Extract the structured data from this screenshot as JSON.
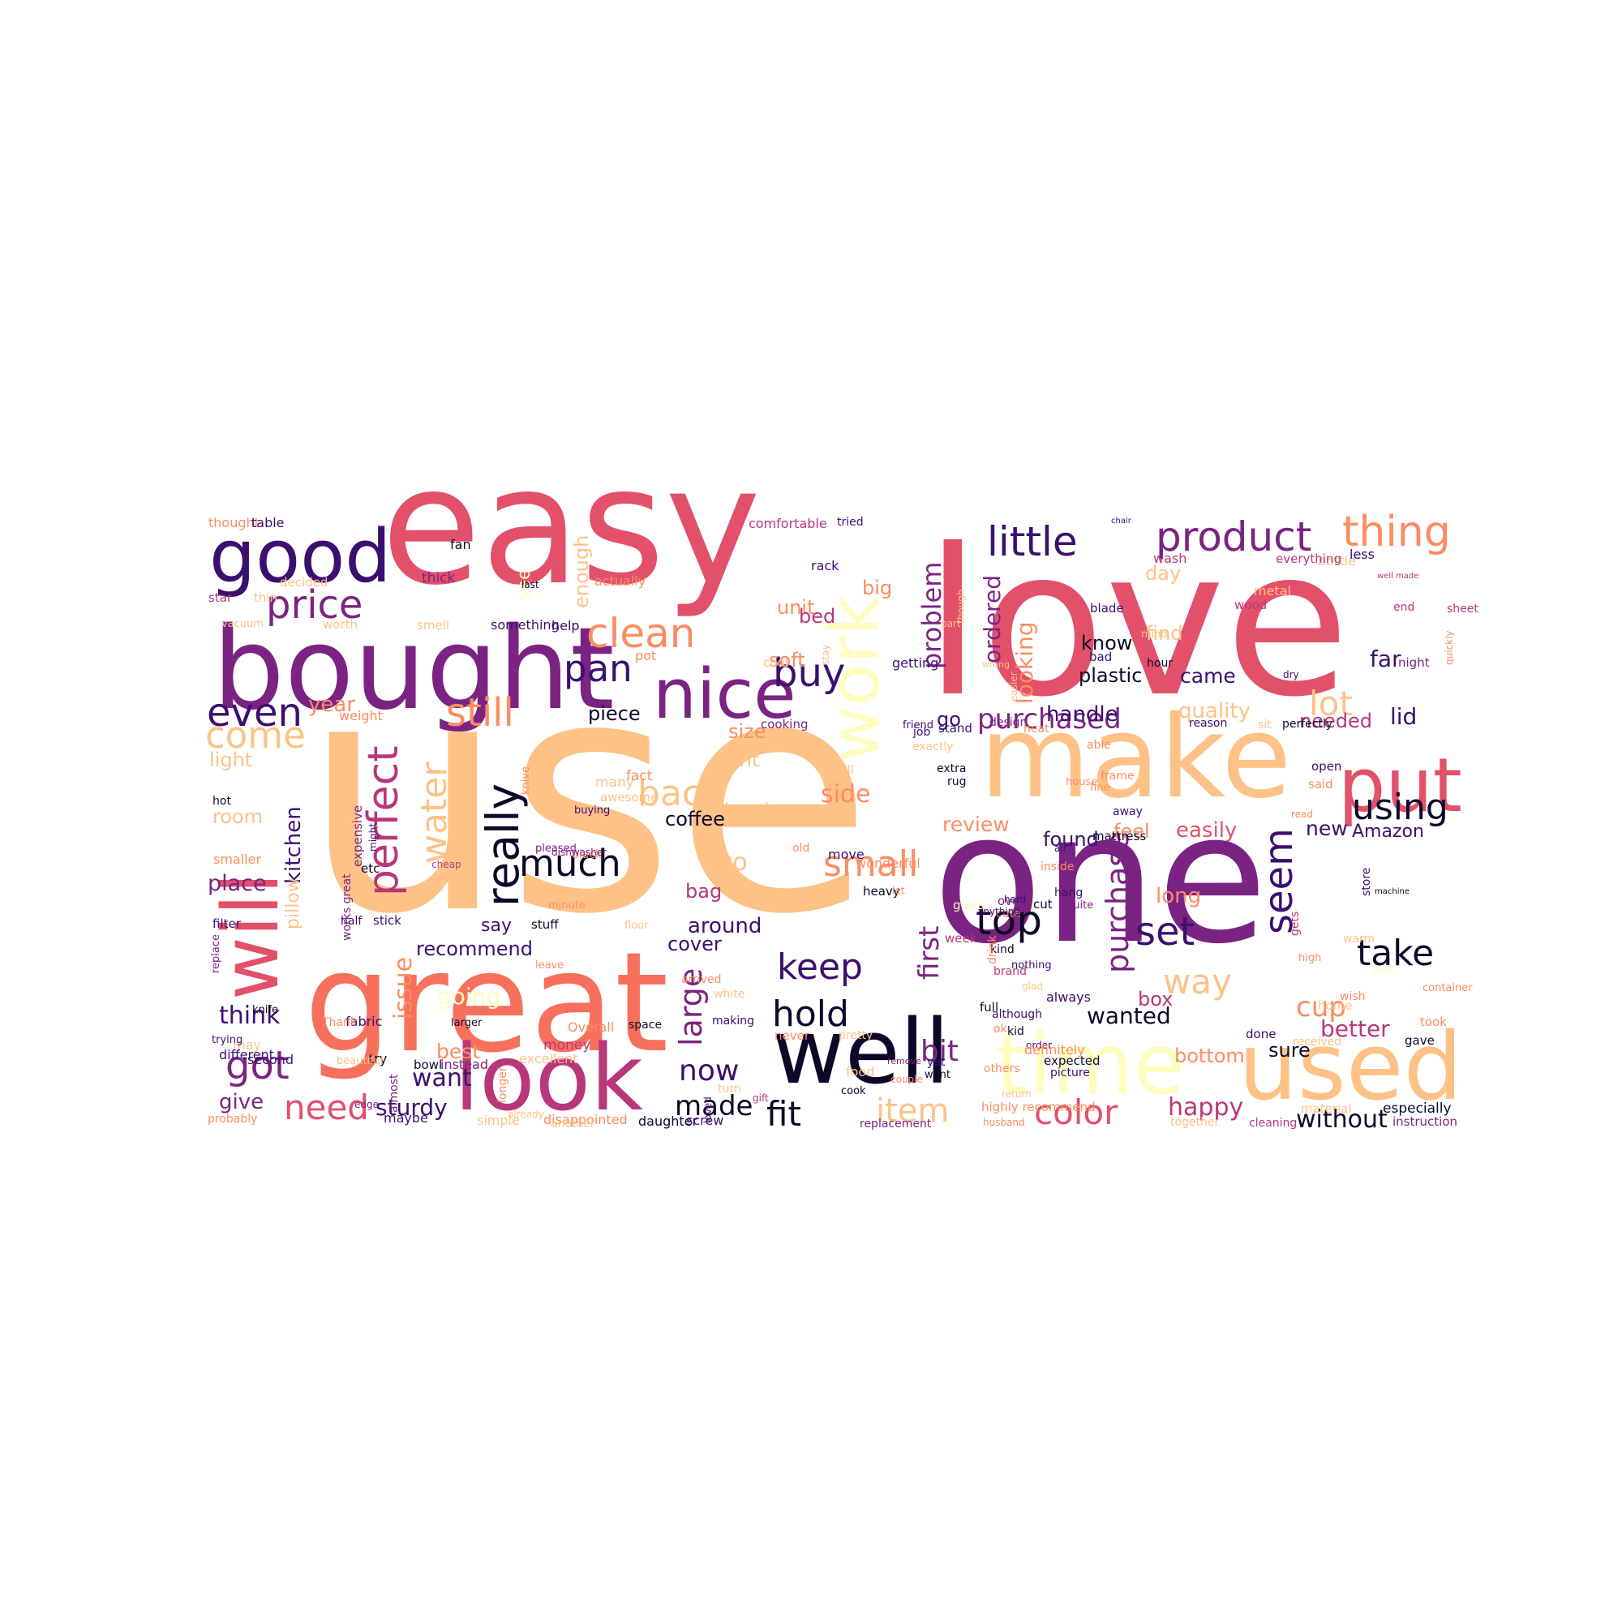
{
  "palette": {
    "dark": "#0d0829",
    "indigo": "#3b0f70",
    "purple": "#7b2382",
    "magenta": "#b73779",
    "rose": "#e2506a",
    "coral": "#f7705c",
    "salmon": "#fb8d62",
    "peach": "#fec287",
    "cream": "#fcfdbf"
  },
  "words": [
    {
      "t": "use",
      "c": "peach"
    },
    {
      "t": "love",
      "c": "rose"
    },
    {
      "t": "easy",
      "c": "rose"
    },
    {
      "t": "one",
      "c": "purple"
    },
    {
      "t": "great",
      "c": "coral"
    },
    {
      "t": "bought",
      "c": "purple"
    },
    {
      "t": "make",
      "c": "peach"
    },
    {
      "t": "well",
      "c": "dark"
    },
    {
      "t": "used",
      "c": "peach"
    },
    {
      "t": "time",
      "c": "cream"
    },
    {
      "t": "look",
      "c": "magenta"
    },
    {
      "t": "good",
      "c": "indigo"
    },
    {
      "t": "will",
      "c": "rose"
    },
    {
      "t": "nice",
      "c": "purple"
    },
    {
      "t": "put",
      "c": "rose"
    },
    {
      "t": "work",
      "c": "cream"
    },
    {
      "t": "product",
      "c": "purple"
    },
    {
      "t": "little",
      "c": "indigo"
    },
    {
      "t": "thing",
      "c": "salmon"
    },
    {
      "t": "price",
      "c": "purple"
    },
    {
      "t": "clean",
      "c": "salmon"
    },
    {
      "t": "pan",
      "c": "indigo"
    },
    {
      "t": "still",
      "c": "salmon"
    },
    {
      "t": "even",
      "c": "indigo"
    },
    {
      "t": "come",
      "c": "peach"
    },
    {
      "t": "buy",
      "c": "indigo"
    },
    {
      "t": "really",
      "c": "dark"
    },
    {
      "t": "perfect",
      "c": "magenta"
    },
    {
      "t": "water",
      "c": "peach"
    },
    {
      "t": "back",
      "c": "peach"
    },
    {
      "t": "much",
      "c": "dark"
    },
    {
      "t": "small",
      "c": "salmon"
    },
    {
      "t": "using",
      "c": "dark"
    },
    {
      "t": "top",
      "c": "dark"
    },
    {
      "t": "seem",
      "c": "indigo"
    },
    {
      "t": "set",
      "c": "indigo"
    },
    {
      "t": "take",
      "c": "dark"
    },
    {
      "t": "way",
      "c": "peach"
    },
    {
      "t": "keep",
      "c": "indigo"
    },
    {
      "t": "hold",
      "c": "dark"
    },
    {
      "t": "need",
      "c": "rose"
    },
    {
      "t": "fit",
      "c": "dark"
    },
    {
      "t": "item",
      "c": "peach"
    },
    {
      "t": "color",
      "c": "rose"
    },
    {
      "t": "made",
      "c": "dark"
    },
    {
      "t": "got",
      "c": "purple"
    },
    {
      "t": "lot",
      "c": "peach"
    },
    {
      "t": "purchase",
      "c": "purple"
    },
    {
      "t": "first",
      "c": "purple"
    },
    {
      "t": "problem",
      "c": "purple"
    },
    {
      "t": "purchased",
      "c": "purple"
    },
    {
      "t": "ordered",
      "c": "purple"
    },
    {
      "t": "looking",
      "c": "salmon"
    },
    {
      "t": "now",
      "c": "indigo"
    },
    {
      "t": "bit",
      "c": "purple"
    },
    {
      "t": "large",
      "c": "purple"
    },
    {
      "t": "cup",
      "c": "salmon"
    },
    {
      "t": "wanted",
      "c": "dark"
    },
    {
      "t": "better",
      "c": "magenta"
    },
    {
      "t": "without",
      "c": "dark"
    },
    {
      "t": "happy",
      "c": "magenta"
    },
    {
      "t": "sturdy",
      "c": "indigo"
    },
    {
      "t": "kitchen",
      "c": "indigo"
    },
    {
      "t": "place",
      "c": "purple"
    },
    {
      "t": "think",
      "c": "indigo"
    },
    {
      "t": "want",
      "c": "indigo"
    },
    {
      "t": "give",
      "c": "purple"
    },
    {
      "t": "issue",
      "c": "salmon"
    },
    {
      "t": "recommend",
      "c": "indigo"
    },
    {
      "t": "best",
      "c": "salmon"
    },
    {
      "t": "going",
      "c": "cream"
    },
    {
      "t": "say",
      "c": "indigo"
    },
    {
      "t": "around",
      "c": "indigo"
    },
    {
      "t": "bag",
      "c": "magenta"
    },
    {
      "t": "cover",
      "c": "indigo"
    },
    {
      "t": "two",
      "c": "peach"
    },
    {
      "t": "coffee",
      "c": "dark"
    },
    {
      "t": "side",
      "c": "salmon"
    },
    {
      "t": "review",
      "c": "salmon"
    },
    {
      "t": "found",
      "c": "indigo"
    },
    {
      "t": "feel",
      "c": "salmon"
    },
    {
      "t": "easily",
      "c": "rose"
    },
    {
      "t": "new",
      "c": "indigo"
    },
    {
      "t": "Amazon",
      "c": "indigo"
    },
    {
      "t": "handle",
      "c": "indigo"
    },
    {
      "t": "quality",
      "c": "peach"
    },
    {
      "t": "needed",
      "c": "magenta"
    },
    {
      "t": "lid",
      "c": "indigo"
    },
    {
      "t": "came",
      "c": "indigo"
    },
    {
      "t": "far",
      "c": "indigo"
    },
    {
      "t": "plastic",
      "c": "dark"
    },
    {
      "t": "know",
      "c": "dark"
    },
    {
      "t": "day",
      "c": "peach"
    },
    {
      "t": "unit",
      "c": "salmon"
    },
    {
      "t": "bed",
      "c": "magenta"
    },
    {
      "t": "big",
      "c": "salmon"
    },
    {
      "t": "soft",
      "c": "salmon"
    },
    {
      "t": "find",
      "c": "peach"
    },
    {
      "t": "piece",
      "c": "dark"
    },
    {
      "t": "size",
      "c": "salmon"
    },
    {
      "t": "right",
      "c": "peach"
    },
    {
      "t": "hand",
      "c": "peach"
    },
    {
      "t": "year",
      "c": "salmon"
    },
    {
      "t": "light",
      "c": "peach"
    },
    {
      "t": "room",
      "c": "peach"
    },
    {
      "t": "long",
      "c": "salmon"
    },
    {
      "t": "box",
      "c": "magenta"
    },
    {
      "t": "sure",
      "c": "dark"
    },
    {
      "t": "bottom",
      "c": "salmon"
    },
    {
      "t": "go",
      "c": "indigo"
    },
    {
      "t": "see",
      "c": "cream"
    },
    {
      "t": "enough",
      "c": "peach"
    },
    {
      "t": "pillow",
      "c": "peach"
    },
    {
      "t": "thought",
      "c": "salmon"
    },
    {
      "t": "table",
      "c": "indigo"
    },
    {
      "t": "comfortable",
      "c": "magenta"
    },
    {
      "t": "fan",
      "c": "dark"
    },
    {
      "t": "tried",
      "c": "indigo"
    },
    {
      "t": "chair",
      "c": "indigo"
    },
    {
      "t": "decided",
      "c": "peach"
    },
    {
      "t": "thick",
      "c": "purple"
    },
    {
      "t": "last",
      "c": "dark"
    },
    {
      "t": "actually",
      "c": "salmon"
    },
    {
      "t": "rack",
      "c": "indigo"
    },
    {
      "t": "bottle",
      "c": "peach"
    },
    {
      "t": "less",
      "c": "indigo"
    },
    {
      "t": "wash",
      "c": "magenta"
    },
    {
      "t": "everything",
      "c": "magenta"
    },
    {
      "t": "metal",
      "c": "peach"
    },
    {
      "t": "well made",
      "c": "magenta"
    },
    {
      "t": "star",
      "c": "magenta"
    },
    {
      "t": "thin",
      "c": "peach"
    },
    {
      "t": "vacuum",
      "c": "peach"
    },
    {
      "t": "worth",
      "c": "peach"
    },
    {
      "t": "smell",
      "c": "peach"
    },
    {
      "t": "something",
      "c": "indigo"
    },
    {
      "t": "help",
      "c": "indigo"
    },
    {
      "t": "end",
      "c": "magenta"
    },
    {
      "t": "blade",
      "c": "indigo"
    },
    {
      "t": "bad",
      "c": "indigo"
    },
    {
      "t": "wood",
      "c": "magenta"
    },
    {
      "t": "sheet",
      "c": "magenta"
    },
    {
      "t": "pot",
      "c": "salmon"
    },
    {
      "t": "cool",
      "c": "peach"
    },
    {
      "t": "getting",
      "c": "indigo"
    },
    {
      "t": "dry",
      "c": "indigo"
    },
    {
      "t": "hour",
      "c": "dark"
    },
    {
      "t": "night",
      "c": "purple"
    },
    {
      "t": "quickly",
      "c": "salmon"
    },
    {
      "t": "weight",
      "c": "salmon"
    },
    {
      "t": "cooking",
      "c": "purple"
    },
    {
      "t": "design",
      "c": "purple"
    },
    {
      "t": "heat",
      "c": "salmon"
    },
    {
      "t": "reason",
      "c": "indigo"
    },
    {
      "t": "sit",
      "c": "peach"
    },
    {
      "t": "perfectly",
      "c": "dark"
    },
    {
      "t": "job",
      "c": "indigo"
    },
    {
      "t": "exactly",
      "c": "peach"
    },
    {
      "t": "friend",
      "c": "indigo"
    },
    {
      "t": "stand",
      "c": "indigo"
    },
    {
      "t": "extra",
      "c": "dark"
    },
    {
      "t": "open",
      "c": "indigo"
    },
    {
      "t": "fill",
      "c": "peach"
    },
    {
      "t": "rug",
      "c": "dark"
    },
    {
      "t": "frame",
      "c": "salmon"
    },
    {
      "t": "able",
      "c": "salmon"
    },
    {
      "t": "said",
      "c": "salmon"
    },
    {
      "t": "away",
      "c": "indigo"
    },
    {
      "t": "many",
      "c": "peach"
    },
    {
      "t": "fact",
      "c": "salmon"
    },
    {
      "t": "awesome",
      "c": "peach"
    },
    {
      "t": "fine",
      "c": "salmon"
    },
    {
      "t": "hot",
      "c": "dark"
    },
    {
      "t": "house",
      "c": "salmon"
    },
    {
      "t": "buying",
      "c": "indigo"
    },
    {
      "t": "read",
      "c": "salmon"
    },
    {
      "t": "mattress",
      "c": "dark"
    },
    {
      "t": "smaller",
      "c": "salmon"
    },
    {
      "t": "etc",
      "c": "dark"
    },
    {
      "t": "old",
      "c": "salmon"
    },
    {
      "t": "air",
      "c": "indigo"
    },
    {
      "t": "black",
      "c": "salmon"
    },
    {
      "t": "cheap",
      "c": "magenta"
    },
    {
      "t": "move",
      "c": "indigo"
    },
    {
      "t": "wonderful",
      "c": "salmon"
    },
    {
      "t": "heavy",
      "c": "dark"
    },
    {
      "t": "let",
      "c": "salmon"
    },
    {
      "t": "inside",
      "c": "salmon"
    },
    {
      "t": "oven",
      "c": "purple"
    },
    {
      "t": "cut",
      "c": "dark"
    },
    {
      "t": "cute",
      "c": "salmon"
    },
    {
      "t": "quite",
      "c": "purple"
    },
    {
      "t": "hang",
      "c": "indigo"
    },
    {
      "t": "store",
      "c": "indigo"
    },
    {
      "t": "glass",
      "c": "cream"
    },
    {
      "t": "hard",
      "c": "indigo"
    },
    {
      "t": "anything",
      "c": "indigo"
    },
    {
      "t": "machine",
      "c": "dark"
    },
    {
      "t": "filter",
      "c": "indigo"
    },
    {
      "t": "half",
      "c": "indigo"
    },
    {
      "t": "stick",
      "c": "indigo"
    },
    {
      "t": "minute",
      "c": "salmon"
    },
    {
      "t": "week",
      "c": "magenta"
    },
    {
      "t": "kind",
      "c": "dark"
    },
    {
      "t": "gets",
      "c": "magenta"
    },
    {
      "t": "warm",
      "c": "peach"
    },
    {
      "t": "stuff",
      "c": "dark"
    },
    {
      "t": "floor",
      "c": "peach"
    },
    {
      "t": "arrived",
      "c": "salmon"
    },
    {
      "t": "high",
      "c": "salmon"
    },
    {
      "t": "nothing",
      "c": "indigo"
    },
    {
      "t": "drink",
      "c": "salmon"
    },
    {
      "t": "brand",
      "c": "magenta"
    },
    {
      "t": "wall",
      "c": "cream"
    },
    {
      "t": "leave",
      "c": "salmon"
    },
    {
      "t": "wish",
      "c": "salmon"
    },
    {
      "t": "home",
      "c": "peach"
    },
    {
      "t": "although",
      "c": "indigo"
    },
    {
      "t": "ok",
      "c": "salmon"
    },
    {
      "t": "received",
      "c": "peach"
    },
    {
      "t": "knife",
      "c": "dark"
    },
    {
      "t": "fabric",
      "c": "indigo"
    },
    {
      "t": "always",
      "c": "indigo"
    },
    {
      "t": "glad",
      "c": "peach"
    },
    {
      "t": "may",
      "c": "peach"
    },
    {
      "t": "try",
      "c": "dark"
    },
    {
      "t": "money",
      "c": "magenta"
    },
    {
      "t": "space",
      "c": "dark"
    },
    {
      "t": "making",
      "c": "indigo"
    },
    {
      "t": "full",
      "c": "dark"
    },
    {
      "t": "took",
      "c": "salmon"
    },
    {
      "t": "container",
      "c": "salmon"
    },
    {
      "t": "trying",
      "c": "indigo"
    },
    {
      "t": "different",
      "c": "indigo"
    },
    {
      "t": "Thank",
      "c": "salmon"
    },
    {
      "t": "larger",
      "c": "dark"
    },
    {
      "t": "Overall",
      "c": "salmon"
    },
    {
      "t": "never",
      "c": "salmon"
    },
    {
      "t": "pretty",
      "c": "peach"
    },
    {
      "t": "kid",
      "c": "dark"
    },
    {
      "t": "order",
      "c": "indigo"
    },
    {
      "t": "done",
      "c": "indigo"
    },
    {
      "t": "gave",
      "c": "dark"
    },
    {
      "t": "definitely",
      "c": "salmon"
    },
    {
      "t": "expected",
      "c": "dark"
    },
    {
      "t": "second",
      "c": "indigo"
    },
    {
      "t": "beautiful",
      "c": "peach"
    },
    {
      "t": "bowl",
      "c": "dark"
    },
    {
      "t": "instead",
      "c": "purple"
    },
    {
      "t": "excellent",
      "c": "peach"
    },
    {
      "t": "food",
      "c": "peach"
    },
    {
      "t": "remove",
      "c": "purple"
    },
    {
      "t": "went",
      "c": "dark"
    },
    {
      "t": "others",
      "c": "salmon"
    },
    {
      "t": "picture",
      "c": "indigo"
    },
    {
      "t": "couple",
      "c": "salmon"
    },
    {
      "t": "yet",
      "c": "indigo"
    },
    {
      "t": "probably",
      "c": "salmon"
    },
    {
      "t": "maybe",
      "c": "indigo"
    },
    {
      "t": "simple",
      "c": "peach"
    },
    {
      "t": "disappointed",
      "c": "salmon"
    },
    {
      "t": "daughter",
      "c": "dark"
    },
    {
      "t": "screw",
      "c": "indigo"
    },
    {
      "t": "husband",
      "c": "salmon"
    },
    {
      "t": "highly recommend",
      "c": "salmon"
    },
    {
      "t": "return",
      "c": "peach"
    },
    {
      "t": "together",
      "c": "peach"
    },
    {
      "t": "cleaning",
      "c": "magenta"
    },
    {
      "t": "material",
      "c": "peach"
    },
    {
      "t": "especially",
      "c": "dark"
    },
    {
      "t": "instruction",
      "c": "purple"
    },
    {
      "t": "cook",
      "c": "dark"
    },
    {
      "t": "replacement",
      "c": "purple"
    },
    {
      "t": "turn",
      "c": "peach"
    },
    {
      "t": "gift",
      "c": "magenta"
    },
    {
      "t": "loved",
      "c": "indigo"
    },
    {
      "t": "longer",
      "c": "salmon"
    },
    {
      "t": "edge",
      "c": "purple"
    },
    {
      "t": "almost",
      "c": "purple"
    },
    {
      "t": "another",
      "c": "peach"
    },
    {
      "t": "already",
      "c": "peach"
    },
    {
      "t": "pleased",
      "c": "purple"
    },
    {
      "t": "dishwasher",
      "c": "purple"
    },
    {
      "t": "works great",
      "c": "purple"
    },
    {
      "t": "expensive",
      "c": "purple"
    },
    {
      "t": "might",
      "c": "indigo"
    },
    {
      "t": "replace",
      "c": "purple"
    },
    {
      "t": "knive",
      "c": "salmon"
    },
    {
      "t": "white",
      "c": "peach"
    },
    {
      "t": "stay",
      "c": "peach"
    },
    {
      "t": "part",
      "c": "peach"
    },
    {
      "t": "though",
      "c": "peach"
    },
    {
      "t": "easier",
      "c": "peach"
    },
    {
      "t": "wrong",
      "c": "peach"
    },
    {
      "t": "mind",
      "c": "peach"
    }
  ]
}
